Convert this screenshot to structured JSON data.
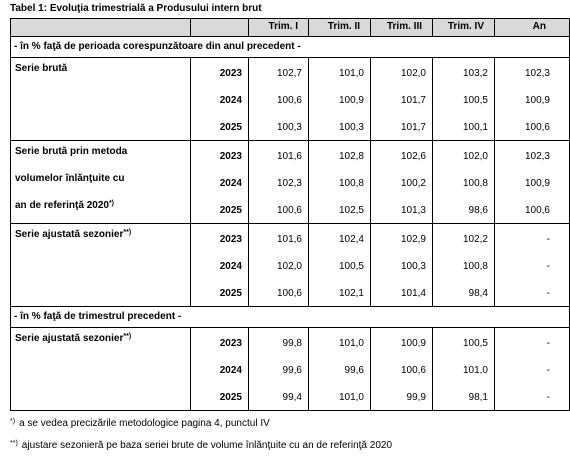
{
  "title": "Tabel 1: Evoluţia trimestrială a Produsului intern brut",
  "table": {
    "columns": [
      "Trim. I",
      "Trim. II",
      "Trim. III",
      "Trim. IV",
      "An"
    ],
    "sections": [
      {
        "label": "- în % faţă de perioada corespunzătoare din anul precedent -",
        "groups": [
          {
            "label_lines": [
              "Serie brută"
            ],
            "label_sup": null,
            "rows": [
              {
                "year": "2023",
                "values": [
                  "102,7",
                  "101,0",
                  "102,0",
                  "103,2",
                  "102,3"
                ]
              },
              {
                "year": "2024",
                "values": [
                  "100,6",
                  "100,9",
                  "101,7",
                  "100,5",
                  "100,9"
                ]
              },
              {
                "year": "2025",
                "values": [
                  "100,3",
                  "100,3",
                  "101,7",
                  "100,1",
                  "100,6"
                ]
              }
            ]
          },
          {
            "label_lines": [
              "Serie brută prin metoda",
              "volumelor înlănţuite cu",
              "an de referinţă 2020"
            ],
            "label_sup": "*)",
            "rows": [
              {
                "year": "2023",
                "values": [
                  "101,6",
                  "102,8",
                  "102,6",
                  "102,0",
                  "102,3"
                ]
              },
              {
                "year": "2024",
                "values": [
                  "102,3",
                  "100,8",
                  "100,2",
                  "100,8",
                  "100,9"
                ]
              },
              {
                "year": "2025",
                "values": [
                  "100,6",
                  "102,5",
                  "101,3",
                  "98,6",
                  "100,6"
                ]
              }
            ]
          },
          {
            "label_lines": [
              "Serie ajustată sezonier"
            ],
            "label_sup": "**)",
            "rows": [
              {
                "year": "2023",
                "values": [
                  "101,6",
                  "102,4",
                  "102,9",
                  "102,2",
                  "-"
                ]
              },
              {
                "year": "2024",
                "values": [
                  "102,0",
                  "100,5",
                  "100,3",
                  "100,8",
                  "-"
                ]
              },
              {
                "year": "2025",
                "values": [
                  "100,6",
                  "102,1",
                  "101,4",
                  "98,4",
                  "-"
                ]
              }
            ]
          }
        ]
      },
      {
        "label": "- în % faţă de trimestrul precedent -",
        "groups": [
          {
            "label_lines": [
              "Serie ajustată sezonier"
            ],
            "label_sup": "**)",
            "rows": [
              {
                "year": "2023",
                "values": [
                  "99,8",
                  "101,0",
                  "100,9",
                  "100,5",
                  "-"
                ]
              },
              {
                "year": "2024",
                "values": [
                  "99,6",
                  "99,6",
                  "100,6",
                  "101,0",
                  "-"
                ]
              },
              {
                "year": "2025",
                "values": [
                  "99,4",
                  "101,0",
                  "99,9",
                  "98,1",
                  "-"
                ]
              }
            ]
          }
        ]
      }
    ]
  },
  "footnotes": [
    {
      "mark": "*)",
      "text": "a se vedea precizările metodologice pagina 4, punctul IV"
    },
    {
      "mark": "**)",
      "text": "ajustare sezonieră pe baza seriei brute de volume înlănţuite cu an de referinţă 2020"
    }
  ]
}
